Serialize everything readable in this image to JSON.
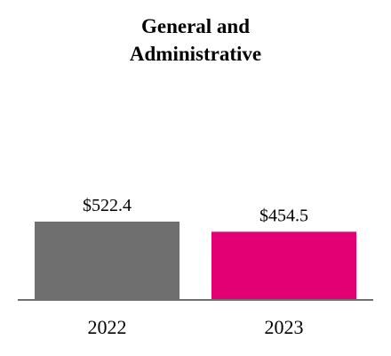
{
  "chart_data": {
    "type": "bar",
    "title_lines": [
      "General and",
      "Administrative"
    ],
    "categories": [
      "2022",
      "2023"
    ],
    "values": [
      522.4,
      454.5
    ],
    "value_labels": [
      "$522.4",
      "$454.5"
    ],
    "colors": [
      "#6f6f6f",
      "#e20074"
    ],
    "axis_color": "#6f6f6f",
    "xlabel": "",
    "ylabel": "",
    "ylim": [
      0,
      1400
    ],
    "grid": false,
    "legend": "none"
  }
}
